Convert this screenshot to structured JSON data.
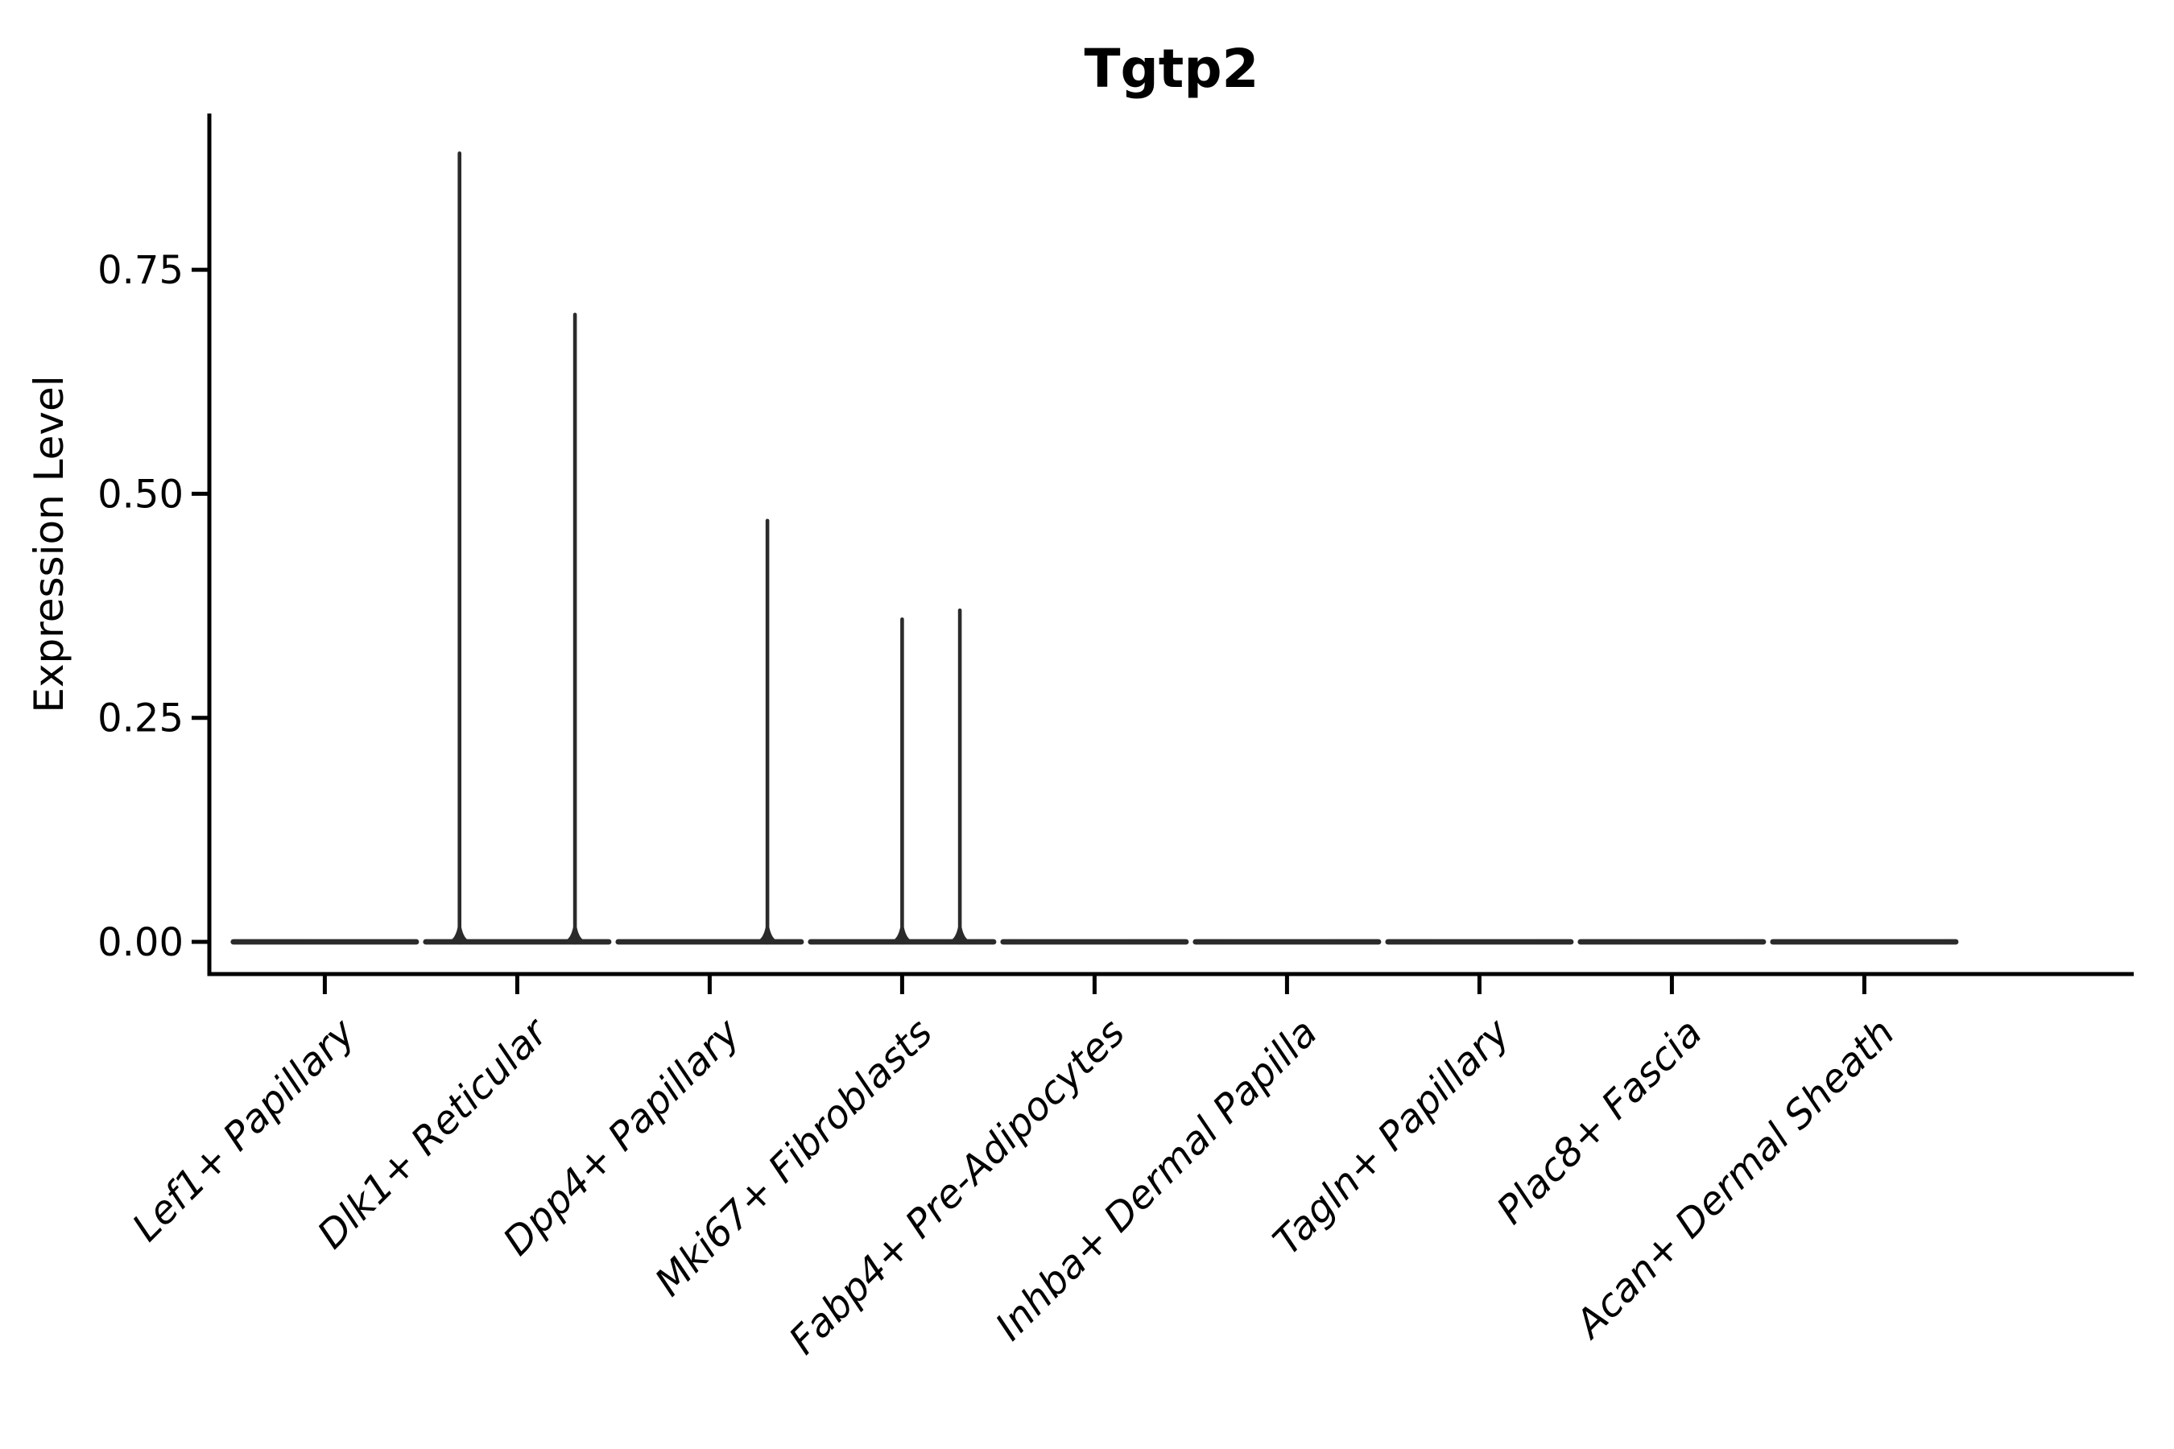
{
  "title": "Tgtp2",
  "colors": {
    "violin": "#2b2b2b",
    "axis": "#000000",
    "text": "#000000",
    "background": "#ffffff"
  },
  "chart_data": {
    "type": "violin",
    "title": "Tgtp2",
    "xlabel": "",
    "ylabel": "Expression Level",
    "ylim": [
      0,
      0.9244
    ],
    "yticks": [
      0,
      0.25,
      0.5,
      0.75
    ],
    "ytick_labels": [
      "0.00",
      "0.25",
      "0.50",
      "0.75"
    ],
    "grid": false,
    "legend_position": "none",
    "x_label_angle_deg": 45,
    "categories": [
      "Lef1+ Papillary",
      "Dlk1+ Reticular",
      "Dpp4+ Papillary",
      "Mki67+ Fibroblasts",
      "Fabp4+ Pre-Adipocytes",
      "Inhba+ Dermal Papilla",
      "Tagln+ Papillary",
      "Plac8+ Fascia",
      "Acan+ Dermal Sheath"
    ],
    "violins": [
      {
        "category": "Lef1+ Papillary",
        "baseline_value": 0,
        "spikes": []
      },
      {
        "category": "Dlk1+ Reticular",
        "baseline_value": 0,
        "spikes": [
          {
            "offset": -0.3,
            "value": 0.88
          },
          {
            "offset": 0.3,
            "value": 0.7
          }
        ]
      },
      {
        "category": "Dpp4+ Papillary",
        "baseline_value": 0,
        "spikes": [
          {
            "offset": 0.3,
            "value": 0.47
          }
        ]
      },
      {
        "category": "Mki67+ Fibroblasts",
        "baseline_value": 0,
        "spikes": [
          {
            "offset": 0.0,
            "value": 0.36
          },
          {
            "offset": 0.3,
            "value": 0.37
          }
        ]
      },
      {
        "category": "Fabp4+ Pre-Adipocytes",
        "baseline_value": 0,
        "spikes": []
      },
      {
        "category": "Inhba+ Dermal Papilla",
        "baseline_value": 0,
        "spikes": []
      },
      {
        "category": "Tagln+ Papillary",
        "baseline_value": 0,
        "spikes": []
      },
      {
        "category": "Plac8+ Fascia",
        "baseline_value": 0,
        "spikes": []
      },
      {
        "category": "Acan+ Dermal Sheath",
        "baseline_value": 0,
        "spikes": []
      }
    ]
  }
}
